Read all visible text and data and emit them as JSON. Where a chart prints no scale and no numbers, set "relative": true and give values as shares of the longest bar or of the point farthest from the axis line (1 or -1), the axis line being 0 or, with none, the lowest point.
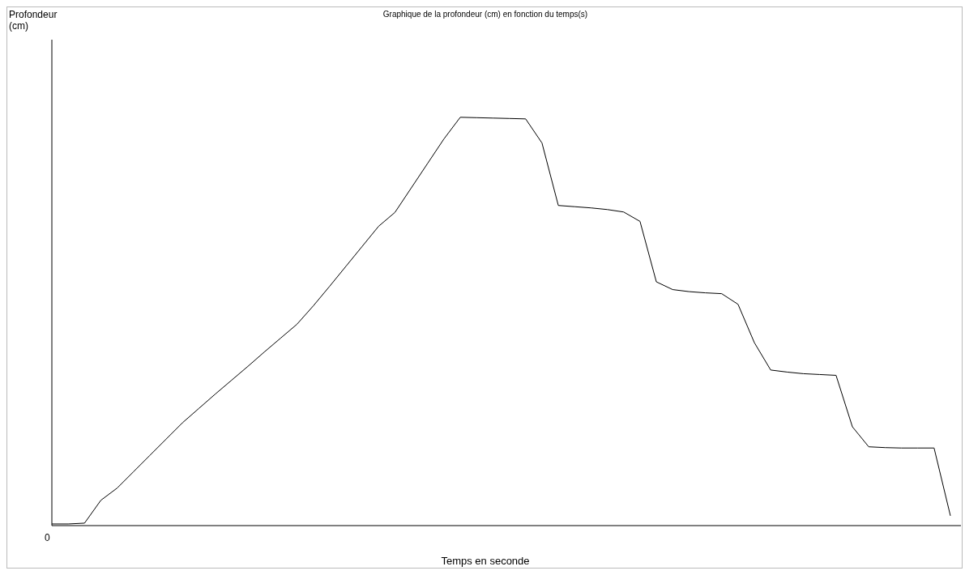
{
  "chart_data": {
    "type": "line",
    "title": "Graphique de la profondeur (cm) en fonction du temps(s)",
    "xlabel": "Temps en seconde",
    "relative": true,
    "annotations": [
      "Profondeur (cm)",
      "0"
    ],
    "marker": "none",
    "line_style": "solid",
    "categories": [
      null,
      null,
      null,
      null,
      null,
      null,
      null,
      null,
      null,
      null,
      null,
      null,
      null,
      null,
      null,
      null,
      null,
      null,
      null,
      null,
      null,
      null,
      null,
      null,
      null,
      null,
      null,
      null,
      null,
      null,
      null,
      null,
      null,
      null,
      null,
      null,
      null,
      null,
      null,
      null,
      null,
      null,
      null,
      null,
      null,
      null,
      null,
      null,
      null,
      null,
      null,
      null,
      null,
      null,
      null,
      null
    ],
    "series": [
      {
        "color": "#000000",
        "values": [
          0.004,
          0.004,
          0.006,
          0.062,
          0.092,
          0.132,
          0.172,
          0.212,
          0.252,
          0.287,
          0.322,
          0.356,
          0.39,
          0.425,
          0.459,
          0.493,
          0.538,
          0.586,
          0.635,
          0.684,
          0.733,
          0.767,
          0.827,
          0.887,
          0.947,
          1.0,
          0.999,
          0.998,
          0.997,
          0.996,
          0.937,
          0.784,
          0.781,
          0.778,
          0.774,
          0.768,
          0.745,
          0.597,
          0.578,
          0.573,
          0.57,
          0.568,
          0.542,
          0.448,
          0.381,
          0.376,
          0.372,
          0.37,
          0.368,
          0.242,
          0.193,
          0.191,
          0.19,
          0.19,
          0.19,
          0.024
        ]
      }
    ]
  }
}
